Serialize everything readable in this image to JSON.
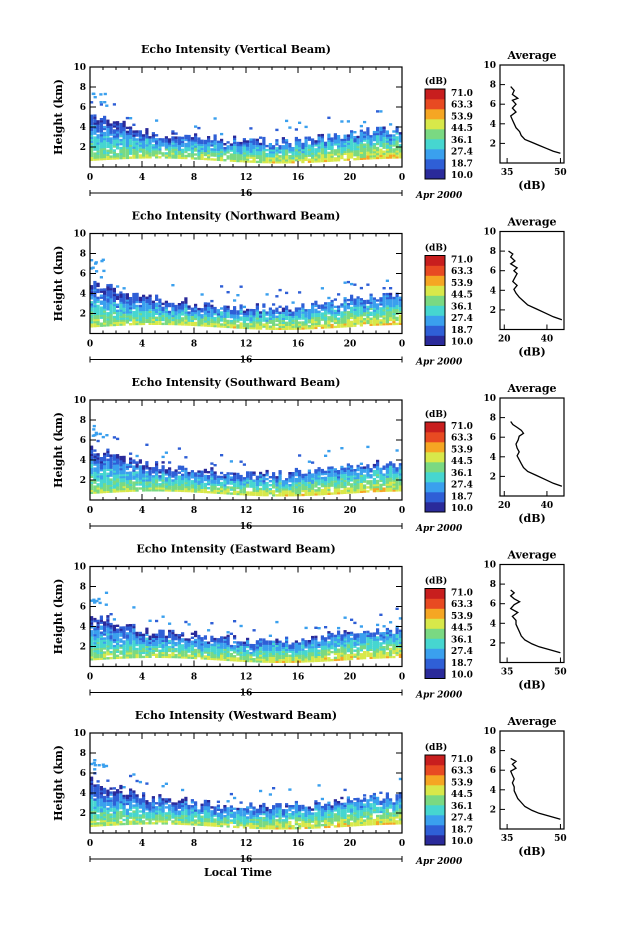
{
  "chart_data": [
    {
      "type": "heatmap",
      "title": "Echo Intensity (Vertical Beam)",
      "ylabel": "Height (km)",
      "xlim": [
        0,
        24
      ],
      "ylim": [
        0,
        10
      ],
      "x_ticks": [
        "0",
        "4",
        "8",
        "12",
        "16",
        "20",
        "0"
      ],
      "y_ticks": [
        "2",
        "4",
        "6",
        "8",
        "10"
      ],
      "date_label": "16",
      "month_label": "Apr 2000",
      "colorbar": {
        "unit": "(dB)",
        "ticks": [
          "71.0",
          "63.3",
          "53.9",
          "44.5",
          "36.1",
          "27.4",
          "18.7",
          "10.0"
        ]
      },
      "average": {
        "title": "Average",
        "xlabel": "(dB)",
        "x_ticks": [
          "35",
          "50"
        ],
        "xlim": [
          33,
          51
        ],
        "y_ticks": [
          "2",
          "4",
          "6",
          "8",
          "10"
        ],
        "profile": [
          [
            50,
            1.0
          ],
          [
            48,
            1.2
          ],
          [
            46,
            1.5
          ],
          [
            44,
            1.8
          ],
          [
            42,
            2.1
          ],
          [
            40,
            2.4
          ],
          [
            39,
            2.8
          ],
          [
            38.5,
            3.2
          ],
          [
            37.5,
            3.6
          ],
          [
            37,
            4.0
          ],
          [
            36.5,
            4.4
          ],
          [
            36,
            4.8
          ],
          [
            37.5,
            5.2
          ],
          [
            36.5,
            5.6
          ],
          [
            37.5,
            6.0
          ],
          [
            36.5,
            6.4
          ],
          [
            38,
            6.6
          ],
          [
            36.5,
            7.0
          ],
          [
            37,
            7.4
          ],
          [
            36,
            7.8
          ]
        ]
      }
    },
    {
      "type": "heatmap",
      "title": "Echo Intensity (Northward Beam)",
      "ylabel": "Height (km)",
      "xlim": [
        0,
        24
      ],
      "ylim": [
        0,
        10
      ],
      "x_ticks": [
        "0",
        "4",
        "8",
        "12",
        "16",
        "20",
        "0"
      ],
      "y_ticks": [
        "2",
        "4",
        "6",
        "8",
        "10"
      ],
      "date_label": "16",
      "month_label": "Apr 2000",
      "colorbar": {
        "unit": "(dB)",
        "ticks": [
          "71.0",
          "63.3",
          "53.9",
          "44.5",
          "36.1",
          "27.4",
          "18.7",
          "10.0"
        ]
      },
      "average": {
        "title": "Average",
        "xlabel": "(dB)",
        "x_ticks": [
          "20",
          "40"
        ],
        "xlim": [
          18,
          48
        ],
        "y_ticks": [
          "2",
          "4",
          "6",
          "8",
          "10"
        ],
        "profile": [
          [
            47,
            1.0
          ],
          [
            43,
            1.3
          ],
          [
            39,
            1.7
          ],
          [
            35,
            2.1
          ],
          [
            31,
            2.5
          ],
          [
            29,
            2.9
          ],
          [
            27,
            3.3
          ],
          [
            25.5,
            3.7
          ],
          [
            24.5,
            4.1
          ],
          [
            26,
            4.5
          ],
          [
            24,
            4.9
          ],
          [
            25,
            5.3
          ],
          [
            26,
            5.7
          ],
          [
            24.5,
            6.0
          ],
          [
            26,
            6.3
          ],
          [
            23,
            6.7
          ],
          [
            25,
            7.0
          ],
          [
            23,
            7.4
          ],
          [
            24,
            7.7
          ],
          [
            22,
            8.0
          ]
        ]
      }
    },
    {
      "type": "heatmap",
      "title": "Echo Intensity (Southward Beam)",
      "ylabel": "Height (km)",
      "xlim": [
        0,
        24
      ],
      "ylim": [
        0,
        10
      ],
      "x_ticks": [
        "0",
        "4",
        "8",
        "12",
        "16",
        "20",
        "0"
      ],
      "y_ticks": [
        "2",
        "4",
        "6",
        "8",
        "10"
      ],
      "date_label": "16",
      "month_label": "Apr 2000",
      "colorbar": {
        "unit": "(dB)",
        "ticks": [
          "71.0",
          "63.3",
          "53.9",
          "44.5",
          "36.1",
          "27.4",
          "18.7",
          "10.0"
        ]
      },
      "average": {
        "title": "Average",
        "xlabel": "(dB)",
        "x_ticks": [
          "20",
          "40"
        ],
        "xlim": [
          18,
          48
        ],
        "y_ticks": [
          "2",
          "4",
          "6",
          "8",
          "10"
        ],
        "profile": [
          [
            47,
            1.0
          ],
          [
            43,
            1.3
          ],
          [
            39,
            1.7
          ],
          [
            35,
            2.1
          ],
          [
            31,
            2.5
          ],
          [
            29,
            2.9
          ],
          [
            28,
            3.3
          ],
          [
            27,
            3.7
          ],
          [
            26,
            4.1
          ],
          [
            27,
            4.5
          ],
          [
            26,
            4.9
          ],
          [
            25.5,
            5.3
          ],
          [
            26.5,
            5.7
          ],
          [
            27,
            6.1
          ],
          [
            29,
            6.4
          ],
          [
            28,
            6.7
          ],
          [
            26,
            7.0
          ],
          [
            24,
            7.3
          ],
          [
            23,
            7.6
          ]
        ]
      }
    },
    {
      "type": "heatmap",
      "title": "Echo Intensity (Eastward Beam)",
      "ylabel": "Height (km)",
      "xlim": [
        0,
        24
      ],
      "ylim": [
        0,
        10
      ],
      "x_ticks": [
        "0",
        "4",
        "8",
        "12",
        "16",
        "20",
        "0"
      ],
      "y_ticks": [
        "2",
        "4",
        "6",
        "8",
        "10"
      ],
      "date_label": "16",
      "month_label": "Apr 2000",
      "colorbar": {
        "unit": "(dB)",
        "ticks": [
          "71.0",
          "63.3",
          "53.9",
          "44.5",
          "36.1",
          "27.4",
          "18.7",
          "10.0"
        ]
      },
      "average": {
        "title": "Average",
        "xlabel": "(dB)",
        "x_ticks": [
          "35",
          "50"
        ],
        "xlim": [
          33,
          51
        ],
        "y_ticks": [
          "2",
          "4",
          "6",
          "8",
          "10"
        ],
        "profile": [
          [
            50,
            1.0
          ],
          [
            47,
            1.3
          ],
          [
            44,
            1.6
          ],
          [
            42,
            1.9
          ],
          [
            40,
            2.3
          ],
          [
            39,
            2.7
          ],
          [
            38.5,
            3.1
          ],
          [
            38,
            3.5
          ],
          [
            37.5,
            3.9
          ],
          [
            37.5,
            4.3
          ],
          [
            36.5,
            4.7
          ],
          [
            38,
            5.1
          ],
          [
            36,
            5.5
          ],
          [
            37,
            5.9
          ],
          [
            38.5,
            6.2
          ],
          [
            37,
            6.5
          ],
          [
            36,
            6.8
          ],
          [
            37,
            7.1
          ],
          [
            36,
            7.4
          ]
        ]
      }
    },
    {
      "type": "heatmap",
      "title": "Echo Intensity (Westward Beam)",
      "ylabel": "Height (km)",
      "xlabel": "Local Time",
      "xlim": [
        0,
        24
      ],
      "ylim": [
        0,
        10
      ],
      "x_ticks": [
        "0",
        "4",
        "8",
        "12",
        "16",
        "20",
        "0"
      ],
      "y_ticks": [
        "2",
        "4",
        "6",
        "8",
        "10"
      ],
      "date_label": "16",
      "month_label": "Apr 2000",
      "colorbar": {
        "unit": "(dB)",
        "ticks": [
          "71.0",
          "63.3",
          "53.9",
          "44.5",
          "36.1",
          "27.4",
          "18.7",
          "10.0"
        ]
      },
      "average": {
        "title": "Average",
        "xlabel": "(dB)",
        "x_ticks": [
          "35",
          "50"
        ],
        "xlim": [
          33,
          51
        ],
        "y_ticks": [
          "2",
          "4",
          "6",
          "8",
          "10"
        ],
        "profile": [
          [
            50,
            1.0
          ],
          [
            47,
            1.3
          ],
          [
            44,
            1.6
          ],
          [
            42,
            1.9
          ],
          [
            40,
            2.3
          ],
          [
            39,
            2.7
          ],
          [
            38,
            3.1
          ],
          [
            37.5,
            3.5
          ],
          [
            37,
            3.9
          ],
          [
            37,
            4.3
          ],
          [
            36.5,
            4.7
          ],
          [
            37,
            5.1
          ],
          [
            36.5,
            5.5
          ],
          [
            36,
            5.9
          ],
          [
            37.5,
            6.2
          ],
          [
            36.5,
            6.6
          ],
          [
            37.5,
            6.9
          ],
          [
            36,
            7.2
          ]
        ]
      }
    }
  ],
  "colors": {
    "scale": [
      "#2a2a9a",
      "#2f5fd6",
      "#3aa0ee",
      "#46d6d0",
      "#7ad982",
      "#d8e84a",
      "#f5a623",
      "#e84a22",
      "#c81e1e"
    ],
    "axis": "#000000",
    "background": "#ffffff"
  }
}
